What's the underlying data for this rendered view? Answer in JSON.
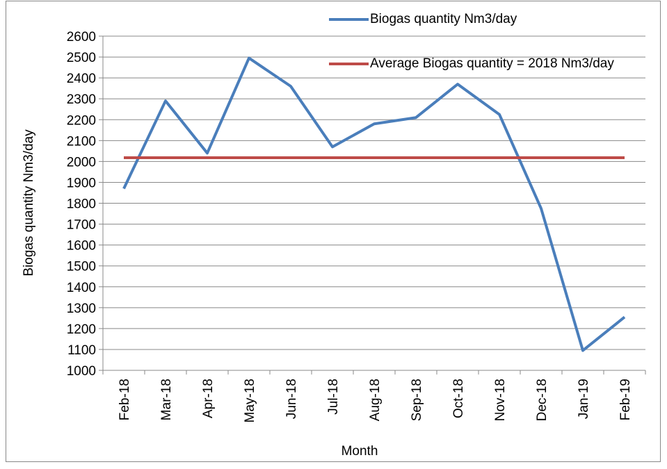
{
  "chart_data": {
    "type": "line",
    "x_label": "Month",
    "y_label": "Biogas quantity Nm3/day",
    "categories": [
      "Feb-18",
      "Mar-18",
      "Apr-18",
      "May-18",
      "Jun-18",
      "Jul-18",
      "Aug-18",
      "Sep-18",
      "Oct-18",
      "Nov-18",
      "Dec-18",
      "Jan-19",
      "Feb-19"
    ],
    "series": [
      {
        "name": "Biogas quantity Nm3/day",
        "color": "#4a7ebb",
        "values": [
          1870,
          2290,
          2040,
          2495,
          2360,
          2070,
          2180,
          2210,
          2370,
          2225,
          1775,
          1095,
          1255
        ]
      },
      {
        "name": "Average Biogas quantity = 2018 Nm3/day",
        "color": "#be4b48",
        "values": [
          2018,
          2018,
          2018,
          2018,
          2018,
          2018,
          2018,
          2018,
          2018,
          2018,
          2018,
          2018,
          2018
        ]
      }
    ],
    "ylim": [
      1000,
      2600
    ],
    "yticks": [
      1000,
      1100,
      1200,
      1300,
      1400,
      1500,
      1600,
      1700,
      1800,
      1900,
      2000,
      2100,
      2200,
      2300,
      2400,
      2500,
      2600
    ],
    "grid": true
  }
}
